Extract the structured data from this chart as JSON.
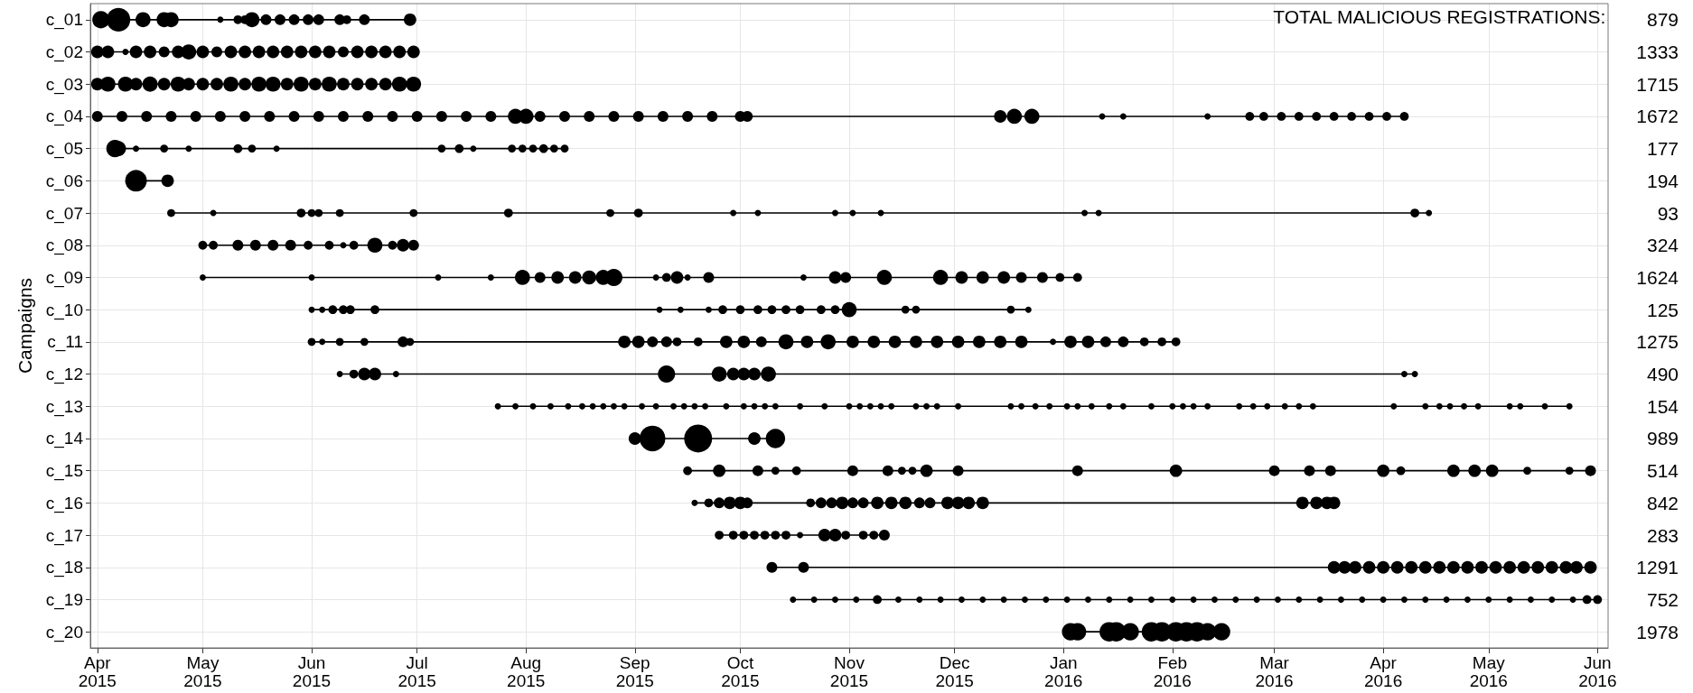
{
  "chart_data": {
    "type": "bubble",
    "ylabel": "Campaigns",
    "color": "#000000",
    "line_style": "solid",
    "grid": true,
    "annotations": [
      "TOTAL MALICIOUS REGISTRATIONS:"
    ],
    "ylim": [
      20.5,
      0.5
    ],
    "yticks": [
      {
        "value": 1,
        "label": "c_01"
      },
      {
        "value": 2,
        "label": "c_02"
      },
      {
        "value": 3,
        "label": "c_03"
      },
      {
        "value": 4,
        "label": "c_04"
      },
      {
        "value": 5,
        "label": "c_05"
      },
      {
        "value": 6,
        "label": "c_06"
      },
      {
        "value": 7,
        "label": "c_07"
      },
      {
        "value": 8,
        "label": "c_08"
      },
      {
        "value": 9,
        "label": "c_09"
      },
      {
        "value": 10,
        "label": "c_10"
      },
      {
        "value": 11,
        "label": "c_11"
      },
      {
        "value": 12,
        "label": "c_12"
      },
      {
        "value": 13,
        "label": "c_13"
      },
      {
        "value": 14,
        "label": "c_14"
      },
      {
        "value": 15,
        "label": "c_15"
      },
      {
        "value": 16,
        "label": "c_16"
      },
      {
        "value": 17,
        "label": "c_17"
      },
      {
        "value": 18,
        "label": "c_18"
      },
      {
        "value": 19,
        "label": "c_19"
      },
      {
        "value": 20,
        "label": "c_20"
      }
    ],
    "totals": [
      "879",
      "1333",
      "1715",
      "1672",
      "177",
      "194",
      "93",
      "324",
      "1624",
      "125",
      "1275",
      "490",
      "154",
      "989",
      "514",
      "842",
      "283",
      "1291",
      "752",
      "1978"
    ],
    "xlim": [
      "2015-03-30",
      "2016-06-04"
    ],
    "xticks": [
      {
        "value": "2015-04-01",
        "label": "Apr\n2015"
      },
      {
        "value": "2015-05-01",
        "label": "May\n2015"
      },
      {
        "value": "2015-06-01",
        "label": "Jun\n2015"
      },
      {
        "value": "2015-07-01",
        "label": "Jul\n2015"
      },
      {
        "value": "2015-08-01",
        "label": "Aug\n2015"
      },
      {
        "value": "2015-09-01",
        "label": "Sep\n2015"
      },
      {
        "value": "2015-10-01",
        "label": "Oct\n2015"
      },
      {
        "value": "2015-11-01",
        "label": "Nov\n2015"
      },
      {
        "value": "2015-12-01",
        "label": "Dec\n2015"
      },
      {
        "value": "2016-01-01",
        "label": "Jan\n2016"
      },
      {
        "value": "2016-02-01",
        "label": "Feb\n2016"
      },
      {
        "value": "2016-03-01",
        "label": "Mar\n2016"
      },
      {
        "value": "2016-04-01",
        "label": "Apr\n2016"
      },
      {
        "value": "2016-05-01",
        "label": "May\n2016"
      },
      {
        "value": "2016-06-01",
        "label": "Jun\n2016"
      }
    ],
    "series": [
      {
        "x": [
          "2015-04-02",
          "2015-04-07",
          "2015-04-14",
          "2015-04-20",
          "2015-04-22",
          "2015-05-06",
          "2015-05-11",
          "2015-05-13",
          "2015-05-15",
          "2015-05-19",
          "2015-05-23",
          "2015-05-27",
          "2015-05-31",
          "2015-06-03",
          "2015-06-09",
          "2015-06-11",
          "2015-06-16",
          "2015-06-29"
        ],
        "sizes": [
          0.38,
          0.72,
          0.29,
          0.29,
          0.29,
          0.05,
          0.1,
          0.1,
          0.29,
          0.15,
          0.15,
          0.15,
          0.15,
          0.15,
          0.15,
          0.1,
          0.15,
          0.2
        ],
        "values": [
          1,
          1,
          1,
          1,
          1,
          1,
          1,
          1,
          1,
          1,
          1,
          1,
          1,
          1,
          1,
          1,
          1,
          1
        ]
      },
      {
        "x": [
          "2015-04-01",
          "2015-04-04",
          "2015-04-09",
          "2015-04-12",
          "2015-04-16",
          "2015-04-20",
          "2015-04-24",
          "2015-04-27",
          "2015-05-01",
          "2015-05-05",
          "2015-05-09",
          "2015-05-13",
          "2015-05-17",
          "2015-05-21",
          "2015-05-25",
          "2015-05-29",
          "2015-06-02",
          "2015-06-06",
          "2015-06-10",
          "2015-06-14",
          "2015-06-18",
          "2015-06-22",
          "2015-06-26",
          "2015-06-30"
        ],
        "sizes": [
          0.2,
          0.2,
          0.05,
          0.2,
          0.2,
          0.15,
          0.2,
          0.29,
          0.2,
          0.15,
          0.2,
          0.2,
          0.2,
          0.2,
          0.2,
          0.2,
          0.2,
          0.2,
          0.15,
          0.2,
          0.2,
          0.2,
          0.2,
          0.2
        ],
        "values": [
          2,
          2,
          2,
          2,
          2,
          2,
          2,
          2,
          2,
          2,
          2,
          2,
          2,
          2,
          2,
          2,
          2,
          2,
          2,
          2,
          2,
          2,
          2,
          2
        ]
      },
      {
        "x": [
          "2015-04-01",
          "2015-04-04",
          "2015-04-09",
          "2015-04-12",
          "2015-04-16",
          "2015-04-20",
          "2015-04-24",
          "2015-04-27",
          "2015-05-01",
          "2015-05-05",
          "2015-05-09",
          "2015-05-13",
          "2015-05-17",
          "2015-05-21",
          "2015-05-25",
          "2015-05-29",
          "2015-06-02",
          "2015-06-06",
          "2015-06-10",
          "2015-06-14",
          "2015-06-18",
          "2015-06-22",
          "2015-06-26",
          "2015-06-30"
        ],
        "sizes": [
          0.2,
          0.29,
          0.29,
          0.2,
          0.3,
          0.2,
          0.29,
          0.2,
          0.2,
          0.2,
          0.29,
          0.2,
          0.29,
          0.29,
          0.2,
          0.29,
          0.2,
          0.29,
          0.2,
          0.2,
          0.2,
          0.2,
          0.29,
          0.29
        ],
        "values": [
          3,
          3,
          3,
          3,
          3,
          3,
          3,
          3,
          3,
          3,
          3,
          3,
          3,
          3,
          3,
          3,
          3,
          3,
          3,
          3,
          3,
          3,
          3,
          3
        ]
      },
      {
        "x": [
          "2015-04-01",
          "2015-04-08",
          "2015-04-15",
          "2015-04-22",
          "2015-04-29",
          "2015-05-06",
          "2015-05-13",
          "2015-05-20",
          "2015-05-27",
          "2015-06-03",
          "2015-06-10",
          "2015-06-17",
          "2015-06-24",
          "2015-07-01",
          "2015-07-08",
          "2015-07-15",
          "2015-07-22",
          "2015-07-29",
          "2015-08-01",
          "2015-08-05",
          "2015-08-12",
          "2015-08-19",
          "2015-08-26",
          "2015-09-02",
          "2015-09-09",
          "2015-09-16",
          "2015-09-23",
          "2015-10-01",
          "2015-10-03",
          "2015-12-14",
          "2015-12-18",
          "2015-12-23",
          "2016-01-12",
          "2016-01-18",
          "2016-02-11",
          "2016-02-23",
          "2016-02-27",
          "2016-03-03",
          "2016-03-08",
          "2016-03-13",
          "2016-03-18",
          "2016-03-23",
          "2016-03-28",
          "2016-04-02",
          "2016-04-07"
        ],
        "sizes": [
          0.15,
          0.15,
          0.15,
          0.15,
          0.15,
          0.15,
          0.15,
          0.15,
          0.15,
          0.15,
          0.15,
          0.15,
          0.15,
          0.15,
          0.15,
          0.15,
          0.15,
          0.29,
          0.29,
          0.15,
          0.15,
          0.15,
          0.15,
          0.15,
          0.15,
          0.15,
          0.15,
          0.15,
          0.15,
          0.2,
          0.29,
          0.29,
          0.05,
          0.05,
          0.05,
          0.1,
          0.1,
          0.1,
          0.1,
          0.1,
          0.1,
          0.1,
          0.1,
          0.1,
          0.1
        ],
        "values": [
          4,
          4,
          4,
          4,
          4,
          4,
          4,
          4,
          4,
          4,
          4,
          4,
          4,
          4,
          4,
          4,
          4,
          4,
          4,
          4,
          4,
          4,
          4,
          4,
          4,
          4,
          4,
          4,
          4,
          4,
          4,
          4,
          4,
          4,
          4,
          4,
          4,
          4,
          4,
          4,
          4,
          4,
          4,
          4,
          4
        ]
      },
      {
        "x": [
          "2015-04-06",
          "2015-04-07",
          "2015-04-12",
          "2015-04-20",
          "2015-04-27",
          "2015-05-11",
          "2015-05-15",
          "2015-05-22",
          "2015-07-08",
          "2015-07-13",
          "2015-07-17",
          "2015-07-28",
          "2015-07-31",
          "2015-08-03",
          "2015-08-06",
          "2015-08-09",
          "2015-08-12"
        ],
        "sizes": [
          0.38,
          0.29,
          0.05,
          0.08,
          0.05,
          0.1,
          0.08,
          0.05,
          0.08,
          0.1,
          0.05,
          0.08,
          0.08,
          0.08,
          0.1,
          0.08,
          0.08
        ],
        "values": [
          5,
          5,
          5,
          5,
          5,
          5,
          5,
          5,
          5,
          5,
          5,
          5,
          5,
          5,
          5,
          5,
          5
        ]
      },
      {
        "x": [
          "2015-04-12",
          "2015-04-21"
        ],
        "sizes": [
          0.6,
          0.2
        ],
        "values": [
          6,
          6
        ]
      },
      {
        "x": [
          "2015-04-22",
          "2015-05-04",
          "2015-05-29",
          "2015-06-01",
          "2015-06-03",
          "2015-06-09",
          "2015-06-30",
          "2015-07-27",
          "2015-08-25",
          "2015-09-02",
          "2015-09-29",
          "2015-10-06",
          "2015-10-28",
          "2015-11-02",
          "2015-11-10",
          "2016-01-07",
          "2016-01-11",
          "2016-04-10",
          "2016-04-14"
        ],
        "sizes": [
          0.08,
          0.05,
          0.1,
          0.08,
          0.08,
          0.08,
          0.08,
          0.1,
          0.08,
          0.1,
          0.05,
          0.05,
          0.05,
          0.05,
          0.05,
          0.05,
          0.05,
          0.1,
          0.05
        ],
        "values": [
          7,
          7,
          7,
          7,
          7,
          7,
          7,
          7,
          7,
          7,
          7,
          7,
          7,
          7,
          7,
          7,
          7,
          7,
          7
        ]
      },
      {
        "x": [
          "2015-05-01",
          "2015-05-04",
          "2015-05-11",
          "2015-05-16",
          "2015-05-21",
          "2015-05-26",
          "2015-05-31",
          "2015-06-06",
          "2015-06-10",
          "2015-06-13",
          "2015-06-19",
          "2015-06-24",
          "2015-06-27",
          "2015-06-30"
        ],
        "sizes": [
          0.1,
          0.1,
          0.15,
          0.15,
          0.15,
          0.15,
          0.1,
          0.1,
          0.05,
          0.1,
          0.29,
          0.1,
          0.2,
          0.15
        ],
        "values": [
          8,
          8,
          8,
          8,
          8,
          8,
          8,
          8,
          8,
          8,
          8,
          8,
          8,
          8
        ]
      },
      {
        "x": [
          "2015-05-01",
          "2015-06-01",
          "2015-07-07",
          "2015-07-22",
          "2015-07-31",
          "2015-08-05",
          "2015-08-10",
          "2015-08-15",
          "2015-08-19",
          "2015-08-23",
          "2015-08-26",
          "2015-09-07",
          "2015-09-10",
          "2015-09-13",
          "2015-09-16",
          "2015-09-22",
          "2015-10-19",
          "2015-10-28",
          "2015-10-31",
          "2015-11-11",
          "2015-11-27",
          "2015-12-03",
          "2015-12-09",
          "2015-12-15",
          "2015-12-20",
          "2015-12-26",
          "2015-12-31",
          "2016-01-05"
        ],
        "sizes": [
          0.05,
          0.05,
          0.05,
          0.05,
          0.29,
          0.15,
          0.2,
          0.2,
          0.25,
          0.29,
          0.38,
          0.05,
          0.1,
          0.2,
          0.05,
          0.15,
          0.05,
          0.2,
          0.15,
          0.29,
          0.29,
          0.2,
          0.2,
          0.2,
          0.15,
          0.15,
          0.1,
          0.1
        ],
        "values": [
          9,
          9,
          9,
          9,
          9,
          9,
          9,
          9,
          9,
          9,
          9,
          9,
          9,
          9,
          9,
          9,
          9,
          9,
          9,
          9,
          9,
          9,
          9,
          9,
          9,
          9,
          9,
          9
        ]
      },
      {
        "x": [
          "2015-06-01",
          "2015-06-04",
          "2015-06-07",
          "2015-06-10",
          "2015-06-12",
          "2015-06-19",
          "2015-09-08",
          "2015-09-14",
          "2015-09-22",
          "2015-09-26",
          "2015-10-01",
          "2015-10-06",
          "2015-10-10",
          "2015-10-14",
          "2015-10-18",
          "2015-10-24",
          "2015-10-28",
          "2015-11-01",
          "2015-11-17",
          "2015-11-20",
          "2015-12-17",
          "2015-12-22"
        ],
        "sizes": [
          0.05,
          0.05,
          0.1,
          0.1,
          0.1,
          0.1,
          0.05,
          0.05,
          0.05,
          0.1,
          0.1,
          0.1,
          0.1,
          0.1,
          0.1,
          0.1,
          0.1,
          0.29,
          0.08,
          0.08,
          0.08,
          0.05
        ],
        "values": [
          10,
          10,
          10,
          10,
          10,
          10,
          10,
          10,
          10,
          10,
          10,
          10,
          10,
          10,
          10,
          10,
          10,
          10,
          10,
          10,
          10,
          10
        ]
      },
      {
        "x": [
          "2015-06-01",
          "2015-06-04",
          "2015-06-09",
          "2015-06-16",
          "2015-06-27",
          "2015-06-29",
          "2015-08-29",
          "2015-09-02",
          "2015-09-06",
          "2015-09-10",
          "2015-09-13",
          "2015-09-19",
          "2015-09-27",
          "2015-10-02",
          "2015-10-07",
          "2015-10-14",
          "2015-10-20",
          "2015-10-26",
          "2015-11-02",
          "2015-11-08",
          "2015-11-14",
          "2015-11-20",
          "2015-11-26",
          "2015-12-02",
          "2015-12-08",
          "2015-12-14",
          "2015-12-20",
          "2015-12-29",
          "2016-01-03",
          "2016-01-08",
          "2016-01-13",
          "2016-01-18",
          "2016-01-24",
          "2016-01-29",
          "2016-02-02"
        ],
        "sizes": [
          0.08,
          0.05,
          0.08,
          0.08,
          0.15,
          0.08,
          0.2,
          0.2,
          0.15,
          0.15,
          0.1,
          0.1,
          0.2,
          0.2,
          0.15,
          0.29,
          0.2,
          0.29,
          0.2,
          0.2,
          0.2,
          0.2,
          0.2,
          0.2,
          0.2,
          0.2,
          0.2,
          0.05,
          0.2,
          0.2,
          0.15,
          0.15,
          0.1,
          0.1,
          0.1
        ],
        "values": [
          11,
          11,
          11,
          11,
          11,
          11,
          11,
          11,
          11,
          11,
          11,
          11,
          11,
          11,
          11,
          11,
          11,
          11,
          11,
          11,
          11,
          11,
          11,
          11,
          11,
          11,
          11,
          11,
          11,
          11,
          11,
          11,
          11,
          11,
          11
        ]
      },
      {
        "x": [
          "2015-06-09",
          "2015-06-13",
          "2015-06-16",
          "2015-06-19",
          "2015-06-25",
          "2015-09-10",
          "2015-09-25",
          "2015-09-29",
          "2015-10-02",
          "2015-10-05",
          "2015-10-09",
          "2016-04-07",
          "2016-04-10"
        ],
        "sizes": [
          0.05,
          0.1,
          0.2,
          0.2,
          0.05,
          0.38,
          0.29,
          0.2,
          0.2,
          0.2,
          0.29,
          0.05,
          0.05
        ],
        "values": [
          12,
          12,
          12,
          12,
          12,
          12,
          12,
          12,
          12,
          12,
          12,
          12,
          12
        ]
      },
      {
        "x": [
          "2015-07-24",
          "2015-07-29",
          "2015-08-03",
          "2015-08-08",
          "2015-08-13",
          "2015-08-17",
          "2015-08-20",
          "2015-08-23",
          "2015-08-26",
          "2015-08-29",
          "2015-09-03",
          "2015-09-07",
          "2015-09-12",
          "2015-09-15",
          "2015-09-18",
          "2015-09-21",
          "2015-09-27",
          "2015-10-02",
          "2015-10-05",
          "2015-10-08",
          "2015-10-11",
          "2015-10-18",
          "2015-10-25",
          "2015-11-01",
          "2015-11-04",
          "2015-11-07",
          "2015-11-10",
          "2015-11-13",
          "2015-11-20",
          "2015-11-23",
          "2015-11-26",
          "2015-12-02",
          "2015-12-17",
          "2015-12-20",
          "2015-12-24",
          "2015-12-28",
          "2016-01-02",
          "2016-01-05",
          "2016-01-09",
          "2016-01-14",
          "2016-01-18",
          "2016-01-26",
          "2016-02-01",
          "2016-02-04",
          "2016-02-07",
          "2016-02-11",
          "2016-02-20",
          "2016-02-24",
          "2016-02-28",
          "2016-03-04",
          "2016-03-08",
          "2016-03-12",
          "2016-04-04",
          "2016-04-13",
          "2016-04-17",
          "2016-04-20",
          "2016-04-24",
          "2016-04-28",
          "2016-05-07",
          "2016-05-10",
          "2016-05-17",
          "2016-05-24"
        ],
        "sizes": [
          0.05,
          0.05,
          0.05,
          0.05,
          0.05,
          0.05,
          0.05,
          0.05,
          0.05,
          0.05,
          0.05,
          0.05,
          0.05,
          0.05,
          0.05,
          0.05,
          0.05,
          0.05,
          0.05,
          0.05,
          0.05,
          0.05,
          0.05,
          0.05,
          0.05,
          0.05,
          0.05,
          0.05,
          0.05,
          0.05,
          0.05,
          0.05,
          0.05,
          0.05,
          0.05,
          0.05,
          0.05,
          0.05,
          0.05,
          0.05,
          0.05,
          0.05,
          0.05,
          0.05,
          0.05,
          0.05,
          0.05,
          0.05,
          0.05,
          0.05,
          0.05,
          0.05,
          0.05,
          0.05,
          0.05,
          0.05,
          0.05,
          0.05,
          0.05,
          0.05,
          0.05,
          0.05
        ],
        "values": [
          13,
          13,
          13,
          13,
          13,
          13,
          13,
          13,
          13,
          13,
          13,
          13,
          13,
          13,
          13,
          13,
          13,
          13,
          13,
          13,
          13,
          13,
          13,
          13,
          13,
          13,
          13,
          13,
          13,
          13,
          13,
          13,
          13,
          13,
          13,
          13,
          13,
          13,
          13,
          13,
          13,
          13,
          13,
          13,
          13,
          13,
          13,
          13,
          13,
          13,
          13,
          13,
          13,
          13,
          13,
          13,
          13,
          13,
          13,
          13,
          13,
          13
        ]
      },
      {
        "x": [
          "2015-09-01",
          "2015-09-06",
          "2015-09-19",
          "2015-10-05",
          "2015-10-11"
        ],
        "sizes": [
          0.2,
          0.85,
          1,
          0.2,
          0.48
        ],
        "values": [
          14,
          14,
          14,
          14,
          14
        ]
      },
      {
        "x": [
          "2015-09-16",
          "2015-09-25",
          "2015-10-06",
          "2015-10-11",
          "2015-10-17",
          "2015-11-02",
          "2015-11-12",
          "2015-11-16",
          "2015-11-19",
          "2015-11-23",
          "2015-12-02",
          "2016-01-05",
          "2016-02-02",
          "2016-03-01",
          "2016-03-11",
          "2016-03-17",
          "2016-04-01",
          "2016-04-06",
          "2016-04-21",
          "2016-04-27",
          "2016-05-02",
          "2016-05-12",
          "2016-05-24",
          "2016-05-30"
        ],
        "sizes": [
          0.1,
          0.2,
          0.15,
          0.08,
          0.1,
          0.15,
          0.15,
          0.08,
          0.08,
          0.2,
          0.15,
          0.15,
          0.2,
          0.15,
          0.15,
          0.15,
          0.2,
          0.1,
          0.2,
          0.2,
          0.2,
          0.08,
          0.08,
          0.15
        ],
        "values": [
          15,
          15,
          15,
          15,
          15,
          15,
          15,
          15,
          15,
          15,
          15,
          15,
          15,
          15,
          15,
          15,
          15,
          15,
          15,
          15,
          15,
          15,
          15,
          15
        ]
      },
      {
        "x": [
          "2015-09-18",
          "2015-09-22",
          "2015-09-25",
          "2015-09-28",
          "2015-10-01",
          "2015-10-03",
          "2015-10-21",
          "2015-10-24",
          "2015-10-27",
          "2015-10-30",
          "2015-11-02",
          "2015-11-05",
          "2015-11-09",
          "2015-11-13",
          "2015-11-17",
          "2015-11-21",
          "2015-11-24",
          "2015-11-29",
          "2015-12-02",
          "2015-12-05",
          "2015-12-09",
          "2016-03-09",
          "2016-03-13",
          "2016-03-16",
          "2016-03-18"
        ],
        "sizes": [
          0.05,
          0.1,
          0.15,
          0.2,
          0.2,
          0.15,
          0.1,
          0.15,
          0.15,
          0.2,
          0.15,
          0.15,
          0.2,
          0.2,
          0.2,
          0.15,
          0.15,
          0.2,
          0.2,
          0.2,
          0.2,
          0.2,
          0.2,
          0.2,
          0.2
        ],
        "values": [
          16,
          16,
          16,
          16,
          16,
          16,
          16,
          16,
          16,
          16,
          16,
          16,
          16,
          16,
          16,
          16,
          16,
          16,
          16,
          16,
          16,
          16,
          16,
          16,
          16
        ]
      },
      {
        "x": [
          "2015-09-25",
          "2015-09-29",
          "2015-10-02",
          "2015-10-05",
          "2015-10-08",
          "2015-10-11",
          "2015-10-14",
          "2015-10-18",
          "2015-10-25",
          "2015-10-28",
          "2015-10-31",
          "2015-11-05",
          "2015-11-08",
          "2015-11-11"
        ],
        "sizes": [
          0.1,
          0.1,
          0.1,
          0.1,
          0.1,
          0.1,
          0.1,
          0.05,
          0.2,
          0.2,
          0.1,
          0.1,
          0.1,
          0.15
        ],
        "values": [
          17,
          17,
          17,
          17,
          17,
          17,
          17,
          17,
          17,
          17,
          17,
          17,
          17,
          17
        ]
      },
      {
        "x": [
          "2015-10-10",
          "2015-10-19",
          "2016-03-18",
          "2016-03-21",
          "2016-03-24",
          "2016-03-28",
          "2016-04-01",
          "2016-04-05",
          "2016-04-09",
          "2016-04-13",
          "2016-04-17",
          "2016-04-21",
          "2016-04-25",
          "2016-04-29",
          "2016-05-03",
          "2016-05-07",
          "2016-05-11",
          "2016-05-15",
          "2016-05-19",
          "2016-05-23",
          "2016-05-26",
          "2016-05-30"
        ],
        "sizes": [
          0.15,
          0.15,
          0.2,
          0.2,
          0.2,
          0.2,
          0.2,
          0.2,
          0.2,
          0.2,
          0.2,
          0.2,
          0.2,
          0.2,
          0.2,
          0.2,
          0.2,
          0.2,
          0.2,
          0.2,
          0.2,
          0.2
        ],
        "values": [
          18,
          18,
          18,
          18,
          18,
          18,
          18,
          18,
          18,
          18,
          18,
          18,
          18,
          18,
          18,
          18,
          18,
          18,
          18,
          18,
          18,
          18
        ]
      },
      {
        "x": [
          "2015-10-16",
          "2015-10-22",
          "2015-10-28",
          "2015-11-03",
          "2015-11-09",
          "2015-11-15",
          "2015-11-21",
          "2015-11-27",
          "2015-12-03",
          "2015-12-09",
          "2015-12-15",
          "2015-12-21",
          "2015-12-27",
          "2016-01-02",
          "2016-01-08",
          "2016-01-14",
          "2016-01-20",
          "2016-01-26",
          "2016-02-01",
          "2016-02-07",
          "2016-02-13",
          "2016-02-19",
          "2016-02-25",
          "2016-03-02",
          "2016-03-08",
          "2016-03-14",
          "2016-03-20",
          "2016-03-26",
          "2016-04-01",
          "2016-04-07",
          "2016-04-13",
          "2016-04-19",
          "2016-04-25",
          "2016-05-01",
          "2016-05-07",
          "2016-05-13",
          "2016-05-19",
          "2016-05-25",
          "2016-05-29",
          "2016-06-01"
        ],
        "sizes": [
          0.05,
          0.05,
          0.05,
          0.05,
          0.1,
          0.05,
          0.05,
          0.05,
          0.05,
          0.05,
          0.05,
          0.05,
          0.05,
          0.05,
          0.05,
          0.05,
          0.05,
          0.05,
          0.05,
          0.05,
          0.05,
          0.05,
          0.05,
          0.05,
          0.05,
          0.05,
          0.05,
          0.05,
          0.05,
          0.05,
          0.05,
          0.05,
          0.05,
          0.05,
          0.05,
          0.05,
          0.05,
          0.05,
          0.1,
          0.1
        ],
        "values": [
          19,
          19,
          19,
          19,
          19,
          19,
          19,
          19,
          19,
          19,
          19,
          19,
          19,
          19,
          19,
          19,
          19,
          19,
          19,
          19,
          19,
          19,
          19,
          19,
          19,
          19,
          19,
          19,
          19,
          19,
          19,
          19,
          19,
          19,
          19,
          19,
          19,
          19,
          19,
          19
        ]
      },
      {
        "x": [
          "2016-01-03",
          "2016-01-05",
          "2016-01-14",
          "2016-01-16",
          "2016-01-20",
          "2016-01-26",
          "2016-01-29",
          "2016-02-02",
          "2016-02-05",
          "2016-02-08",
          "2016-02-11",
          "2016-02-15"
        ],
        "sizes": [
          0.38,
          0.38,
          0.48,
          0.48,
          0.38,
          0.48,
          0.48,
          0.48,
          0.48,
          0.48,
          0.38,
          0.38
        ],
        "values": [
          20,
          20,
          20,
          20,
          20,
          20,
          20,
          20,
          20,
          20,
          20,
          20
        ]
      },
      {
        "type": "line",
        "x": [
          "2015-04-02",
          "2015-06-29"
        ],
        "values": [
          1,
          1
        ]
      },
      {
        "type": "line",
        "x": [
          "2015-04-01",
          "2015-06-30"
        ],
        "values": [
          2,
          2
        ]
      },
      {
        "type": "line",
        "x": [
          "2015-04-01",
          "2015-06-30"
        ],
        "values": [
          3,
          3
        ]
      },
      {
        "type": "line",
        "x": [
          "2015-04-01",
          "2016-04-07"
        ],
        "values": [
          4,
          4
        ]
      },
      {
        "type": "line",
        "x": [
          "2015-04-06",
          "2015-08-12"
        ],
        "values": [
          5,
          5
        ]
      },
      {
        "type": "line",
        "x": [
          "2015-04-12",
          "2015-04-21"
        ],
        "values": [
          6,
          6
        ]
      },
      {
        "type": "line",
        "x": [
          "2015-04-22",
          "2016-04-14"
        ],
        "values": [
          7,
          7
        ]
      },
      {
        "type": "line",
        "x": [
          "2015-05-01",
          "2015-06-30"
        ],
        "values": [
          8,
          8
        ]
      },
      {
        "type": "line",
        "x": [
          "2015-05-01",
          "2016-01-05"
        ],
        "values": [
          9,
          9
        ]
      },
      {
        "type": "line",
        "x": [
          "2015-06-01",
          "2015-12-22"
        ],
        "values": [
          10,
          10
        ]
      },
      {
        "type": "line",
        "x": [
          "2015-06-01",
          "2016-02-02"
        ],
        "values": [
          11,
          11
        ]
      },
      {
        "type": "line",
        "x": [
          "2015-06-09",
          "2016-04-10"
        ],
        "values": [
          12,
          12
        ]
      },
      {
        "type": "line",
        "x": [
          "2015-07-24",
          "2016-05-24"
        ],
        "values": [
          13,
          13
        ]
      },
      {
        "type": "line",
        "x": [
          "2015-09-01",
          "2015-10-11"
        ],
        "values": [
          14,
          14
        ]
      },
      {
        "type": "line",
        "x": [
          "2015-09-16",
          "2016-05-30"
        ],
        "values": [
          15,
          15
        ]
      },
      {
        "type": "line",
        "x": [
          "2015-09-18",
          "2016-03-18"
        ],
        "values": [
          16,
          16
        ]
      },
      {
        "type": "line",
        "x": [
          "2015-09-25",
          "2015-11-11"
        ],
        "values": [
          17,
          17
        ]
      },
      {
        "type": "line",
        "x": [
          "2015-10-10",
          "2016-05-30"
        ],
        "values": [
          18,
          18
        ]
      },
      {
        "type": "line",
        "x": [
          "2015-10-16",
          "2016-06-01"
        ],
        "values": [
          19,
          19
        ]
      },
      {
        "type": "line",
        "x": [
          "2016-01-03",
          "2016-02-15"
        ],
        "values": [
          20,
          20
        ]
      }
    ]
  }
}
